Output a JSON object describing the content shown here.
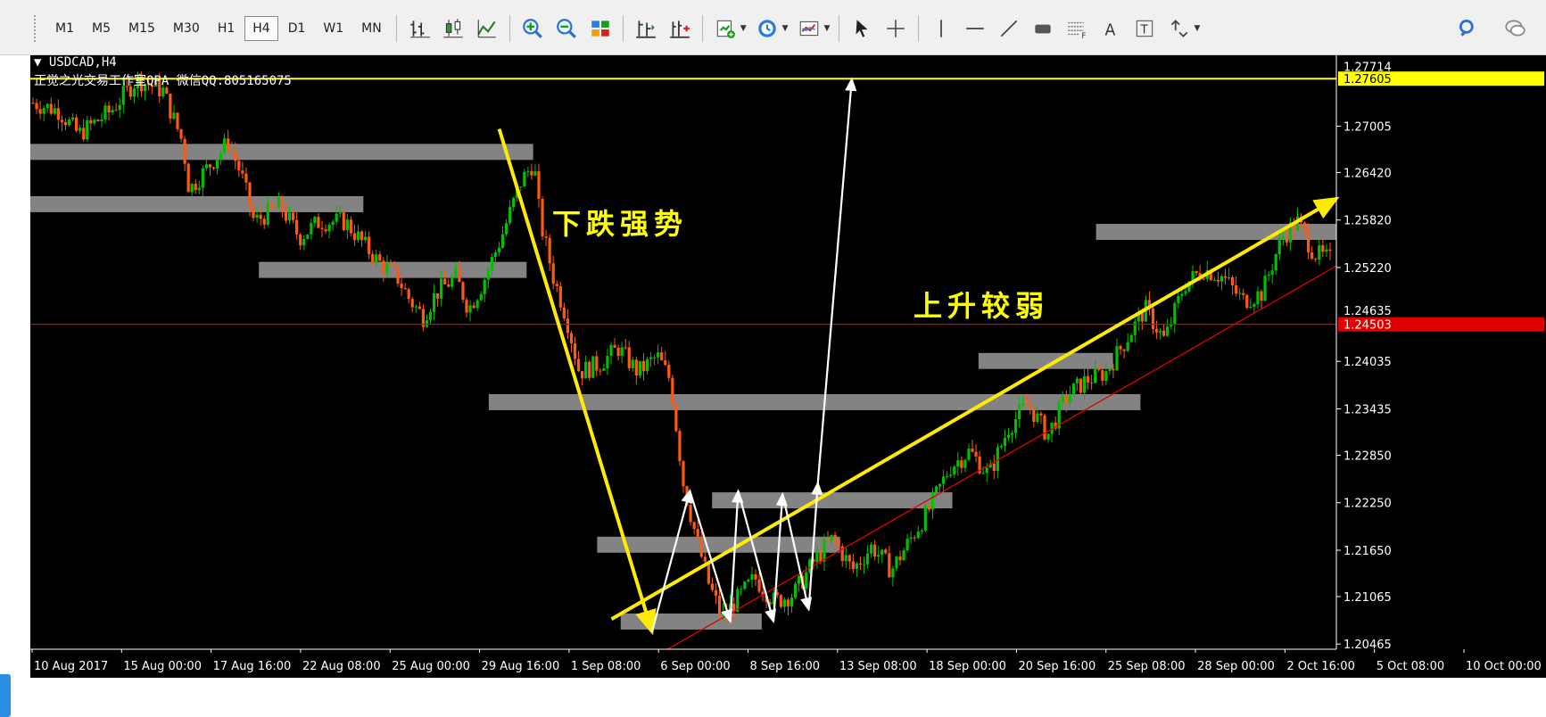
{
  "toolbar": {
    "timeframes": [
      "M1",
      "M5",
      "M15",
      "M30",
      "H1",
      "H4",
      "D1",
      "W1",
      "MN"
    ],
    "active_timeframe": "H4",
    "tools": [
      "bar-chart-icon",
      "candle-chart-icon",
      "line-chart-icon",
      "zoom-in-icon",
      "zoom-out-icon",
      "tile-windows-icon",
      "chart-shift-icon",
      "auto-scroll-icon",
      "indicators-icon",
      "periods-icon",
      "templates-icon",
      "cursor-icon",
      "crosshair-icon",
      "vertical-line-icon",
      "horizontal-line-icon",
      "trendline-icon",
      "rectangle-icon",
      "fibonacci-icon",
      "text-icon",
      "text-label-icon",
      "arrows-icon"
    ],
    "right_tools": [
      "search-icon",
      "chat-icon"
    ]
  },
  "chart": {
    "symbol_label": "USDCAD,H4",
    "watermark": "正觉之光交易工作室QPA 微信QQ:805165075",
    "annotation_down": "下跌强势",
    "annotation_up": "上升较弱",
    "price_ticks": [
      "1.27005",
      "1.26420",
      "1.25820",
      "1.25220",
      "1.24035",
      "1.23435",
      "1.22850",
      "1.22250",
      "1.21650",
      "1.21065",
      "1.20465"
    ],
    "price_ticks_partial": [
      "1.27714",
      "1.24635"
    ],
    "yellow_line_price": "1.27605",
    "red_line_price": "1.24503",
    "time_labels": [
      "10 Aug 2017",
      "15 Aug 00:00",
      "17 Aug 16:00",
      "22 Aug 08:00",
      "25 Aug 00:00",
      "29 Aug 16:00",
      "1 Sep 08:00",
      "6 Sep 00:00",
      "8 Sep 16:00",
      "13 Sep 08:00",
      "18 Sep 00:00",
      "20 Sep 16:00",
      "25 Sep 08:00",
      "28 Sep 00:00",
      "2 Oct 16:00",
      "5 Oct 08:00",
      "10 Oct 00:00"
    ],
    "colors": {
      "background": "#000000",
      "bull": "#00c000",
      "bear": "#ff5a14",
      "yellow": "#ffff00",
      "red": "#e00000",
      "zone": "#a0a0a0",
      "arrow_white": "#ffffff",
      "trend_yellow": "#ffeb00"
    }
  },
  "chart_data": {
    "type": "candlestick",
    "symbol": "USDCAD",
    "timeframe": "H4",
    "ylim": [
      1.204,
      1.279
    ],
    "xlim": [
      "10 Aug 2017",
      "10 Oct 00:00"
    ],
    "horizontal_lines": [
      {
        "price": 1.27605,
        "color": "#ffff00"
      },
      {
        "price": 1.24503,
        "color": "#e00000"
      }
    ],
    "close_path": [
      {
        "t": 0.0,
        "p": 1.273
      },
      {
        "t": 0.02,
        "p": 1.272
      },
      {
        "t": 0.035,
        "p": 1.269
      },
      {
        "t": 0.06,
        "p": 1.272
      },
      {
        "t": 0.08,
        "p": 1.276
      },
      {
        "t": 0.1,
        "p": 1.2745
      },
      {
        "t": 0.115,
        "p": 1.268
      },
      {
        "t": 0.12,
        "p": 1.262
      },
      {
        "t": 0.135,
        "p": 1.265
      },
      {
        "t": 0.15,
        "p": 1.268
      },
      {
        "t": 0.16,
        "p": 1.264
      },
      {
        "t": 0.17,
        "p": 1.258
      },
      {
        "t": 0.19,
        "p": 1.26
      },
      {
        "t": 0.205,
        "p": 1.256
      },
      {
        "t": 0.22,
        "p": 1.258
      },
      {
        "t": 0.24,
        "p": 1.258
      },
      {
        "t": 0.25,
        "p": 1.256
      },
      {
        "t": 0.265,
        "p": 1.253
      },
      {
        "t": 0.28,
        "p": 1.251
      },
      {
        "t": 0.29,
        "p": 1.248
      },
      {
        "t": 0.3,
        "p": 1.246
      },
      {
        "t": 0.31,
        "p": 1.249
      },
      {
        "t": 0.325,
        "p": 1.251
      },
      {
        "t": 0.335,
        "p": 1.247
      },
      {
        "t": 0.345,
        "p": 1.25
      },
      {
        "t": 0.36,
        "p": 1.256
      },
      {
        "t": 0.375,
        "p": 1.263
      },
      {
        "t": 0.385,
        "p": 1.2655
      },
      {
        "t": 0.39,
        "p": 1.258
      },
      {
        "t": 0.4,
        "p": 1.251
      },
      {
        "t": 0.41,
        "p": 1.246
      },
      {
        "t": 0.42,
        "p": 1.239
      },
      {
        "t": 0.435,
        "p": 1.24
      },
      {
        "t": 0.45,
        "p": 1.242
      },
      {
        "t": 0.465,
        "p": 1.239
      },
      {
        "t": 0.48,
        "p": 1.241
      },
      {
        "t": 0.49,
        "p": 1.238
      },
      {
        "t": 0.5,
        "p": 1.225
      },
      {
        "t": 0.51,
        "p": 1.218
      },
      {
        "t": 0.52,
        "p": 1.212
      },
      {
        "t": 0.53,
        "p": 1.208
      },
      {
        "t": 0.54,
        "p": 1.21
      },
      {
        "t": 0.555,
        "p": 1.213
      },
      {
        "t": 0.57,
        "p": 1.21
      },
      {
        "t": 0.585,
        "p": 1.211
      },
      {
        "t": 0.6,
        "p": 1.215
      },
      {
        "t": 0.615,
        "p": 1.218
      },
      {
        "t": 0.63,
        "p": 1.214
      },
      {
        "t": 0.645,
        "p": 1.217
      },
      {
        "t": 0.66,
        "p": 1.214
      },
      {
        "t": 0.675,
        "p": 1.218
      },
      {
        "t": 0.69,
        "p": 1.222
      },
      {
        "t": 0.705,
        "p": 1.227
      },
      {
        "t": 0.72,
        "p": 1.229
      },
      {
        "t": 0.735,
        "p": 1.226
      },
      {
        "t": 0.75,
        "p": 1.232
      },
      {
        "t": 0.765,
        "p": 1.235
      },
      {
        "t": 0.78,
        "p": 1.231
      },
      {
        "t": 0.795,
        "p": 1.236
      },
      {
        "t": 0.81,
        "p": 1.238
      },
      {
        "t": 0.825,
        "p": 1.239
      },
      {
        "t": 0.84,
        "p": 1.243
      },
      {
        "t": 0.855,
        "p": 1.247
      },
      {
        "t": 0.87,
        "p": 1.243
      },
      {
        "t": 0.885,
        "p": 1.25
      },
      {
        "t": 0.9,
        "p": 1.252
      },
      {
        "t": 0.915,
        "p": 1.251
      },
      {
        "t": 0.93,
        "p": 1.248
      },
      {
        "t": 0.945,
        "p": 1.249
      },
      {
        "t": 0.96,
        "p": 1.256
      },
      {
        "t": 0.972,
        "p": 1.258
      },
      {
        "t": 0.985,
        "p": 1.254
      },
      {
        "t": 1.0,
        "p": 1.253
      }
    ],
    "zones": [
      {
        "t0": 0.0,
        "t1": 0.385,
        "p": 1.2668
      },
      {
        "t0": 0.0,
        "t1": 0.255,
        "p": 1.2602
      },
      {
        "t0": 0.175,
        "t1": 0.38,
        "p": 1.2519
      },
      {
        "t0": 0.351,
        "t1": 0.85,
        "p": 1.2352
      },
      {
        "t0": 0.434,
        "t1": 0.62,
        "p": 1.2172
      },
      {
        "t0": 0.452,
        "t1": 0.56,
        "p": 1.2075
      },
      {
        "t0": 0.522,
        "t1": 0.706,
        "p": 1.2228
      },
      {
        "t0": 0.726,
        "t1": 0.829,
        "p": 1.2404
      },
      {
        "t0": 0.816,
        "t1": 1.0,
        "p": 1.2567
      }
    ],
    "trendlines": [
      {
        "color": "#ffeb00",
        "from": {
          "t": 0.445,
          "p": 1.2078
        },
        "to": {
          "t": 1.0,
          "p": 1.2609
        },
        "arrow": true
      },
      {
        "color": "#ffeb00",
        "from": {
          "t": 0.359,
          "p": 1.2697
        },
        "to": {
          "t": 0.476,
          "p": 1.2062
        },
        "arrow": true
      },
      {
        "color": "#e00000",
        "from": {
          "t": 0.488,
          "p": 1.204
        },
        "to": {
          "t": 1.0,
          "p": 1.2524
        },
        "arrow": false
      }
    ],
    "zigzag": [
      {
        "t": 0.476,
        "p": 1.2062
      },
      {
        "t": 0.505,
        "p": 1.224
      },
      {
        "t": 0.536,
        "p": 1.2075
      },
      {
        "t": 0.542,
        "p": 1.224
      },
      {
        "t": 0.569,
        "p": 1.2075
      },
      {
        "t": 0.576,
        "p": 1.2236
      },
      {
        "t": 0.596,
        "p": 1.209
      },
      {
        "t": 0.603,
        "p": 1.225
      },
      {
        "t": 0.629,
        "p": 1.276
      }
    ]
  }
}
